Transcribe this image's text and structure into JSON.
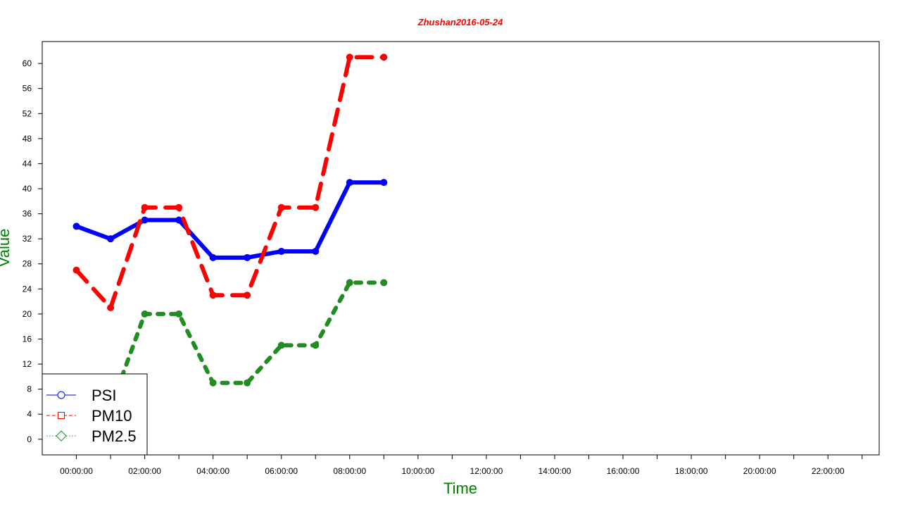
{
  "chart_data": {
    "type": "line",
    "title": "Zhushan2016-05-24",
    "xlabel": "Time",
    "ylabel": "Value",
    "x": [
      "00:00:00",
      "01:00:00",
      "02:00:00",
      "03:00:00",
      "04:00:00",
      "05:00:00",
      "06:00:00",
      "07:00:00",
      "08:00:00",
      "09:00:00"
    ],
    "x_ticks": [
      "00:00:00",
      "02:00:00",
      "04:00:00",
      "06:00:00",
      "08:00:00",
      "10:00:00",
      "12:00:00",
      "14:00:00",
      "16:00:00",
      "18:00:00",
      "20:00:00",
      "22:00:00"
    ],
    "xlim_hours": [
      -1,
      23.5
    ],
    "y_ticks": [
      0,
      4,
      8,
      12,
      16,
      20,
      24,
      28,
      32,
      36,
      40,
      44,
      48,
      52,
      56,
      60
    ],
    "ylim": [
      -2.5,
      63.5
    ],
    "series": [
      {
        "name": "PSI",
        "color": "#0000ff",
        "style": "solid",
        "marker": "circle",
        "values": [
          34,
          32,
          35,
          35,
          29,
          29,
          30,
          30,
          41,
          41
        ]
      },
      {
        "name": "PM10",
        "color": "#ff0000",
        "style": "dashed",
        "marker": "square",
        "values": [
          27,
          21,
          37,
          37,
          23,
          23,
          37,
          37,
          61,
          61
        ]
      },
      {
        "name": "PM2.5",
        "color": "#228b22",
        "style": "dotted",
        "marker": "diamond",
        "values": [
          5,
          5,
          20,
          20,
          9,
          9,
          15,
          15,
          25,
          25
        ]
      }
    ],
    "legend_position": "bottom-left",
    "grid": false
  }
}
